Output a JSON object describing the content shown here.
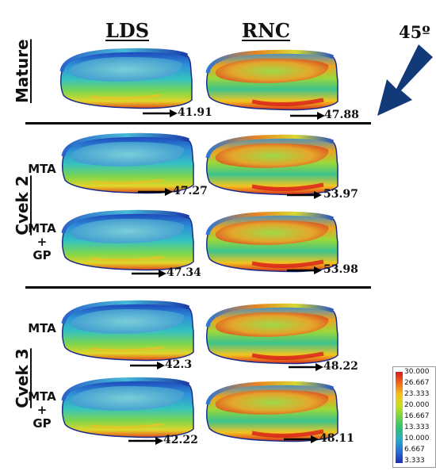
{
  "columns": {
    "left": "LDS",
    "right": "RNC"
  },
  "angle": "45º",
  "colors": {
    "arrow": "#123a78",
    "divider": "#000000"
  },
  "groups": [
    {
      "label": "Mature"
    },
    {
      "label": "Cvek 2",
      "sub": [
        {
          "lines": [
            "MTA"
          ]
        },
        {
          "lines": [
            "MTA",
            "+",
            "GP"
          ]
        }
      ]
    },
    {
      "label": "Cvek 3",
      "sub": [
        {
          "lines": [
            "MTA"
          ]
        },
        {
          "lines": [
            "MTA",
            "+",
            "GP"
          ]
        }
      ]
    }
  ],
  "values": {
    "mature": {
      "lds": "41.91",
      "rnc": "47.88"
    },
    "cvek2_mta": {
      "lds": "47.27",
      "rnc": "53.97"
    },
    "cvek2_mtagp": {
      "lds": "47.34",
      "rnc": "53.98"
    },
    "cvek3_mta": {
      "lds": "42.3",
      "rnc": "48.22"
    },
    "cvek3_mtagp": {
      "lds": "42.22",
      "rnc": "48.11"
    }
  },
  "legend": {
    "ticks": [
      "30.000",
      "26.667",
      "23.333",
      "20.000",
      "16.667",
      "13.333",
      "10.000",
      "6.667",
      "3.333"
    ]
  }
}
